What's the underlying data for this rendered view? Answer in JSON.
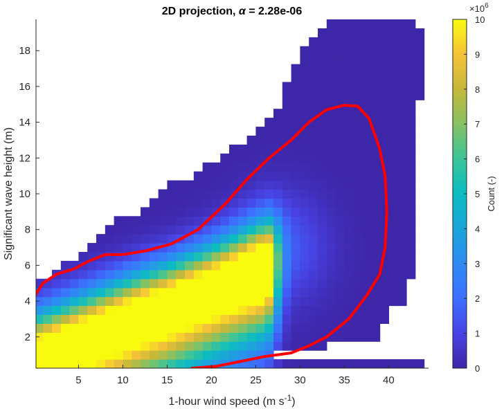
{
  "chart_data": {
    "type": "heatmap",
    "title": {
      "prefix": "2D projection, ",
      "symbol": "α",
      "suffix": " = 2.28e-06"
    },
    "xlabel": {
      "main": "1-hour wind speed (m s",
      "sup": "-1",
      "close": ")"
    },
    "ylabel": "Significant wave height (m)",
    "xlim": [
      0.2,
      44.5
    ],
    "ylim": [
      0.25,
      19.75
    ],
    "xticks": [
      5,
      10,
      15,
      20,
      25,
      30,
      35,
      40
    ],
    "yticks": [
      2,
      4,
      6,
      8,
      10,
      12,
      14,
      16,
      18
    ],
    "xticklabels": [
      "5",
      "10",
      "15",
      "20",
      "25",
      "30",
      "35",
      "40"
    ],
    "yticklabels": [
      "2",
      "4",
      "6",
      "8",
      "10",
      "12",
      "14",
      "16",
      "18"
    ],
    "bin_width_x": 1,
    "bin_width_y": 0.5,
    "colorbar": {
      "label": "Count (-)",
      "exponent_base": "×10",
      "exponent": "6",
      "range": [
        0,
        10
      ],
      "ticks": [
        "0",
        "1",
        "2",
        "3",
        "4",
        "5",
        "6",
        "7",
        "8",
        "9",
        "10"
      ],
      "colormap": "parula"
    },
    "occupied_extent_by_hs_row": [
      {
        "hs": [
          0.25,
          0.75
        ],
        "x": [
          0.2,
          44
        ]
      },
      {
        "hs": [
          0.75,
          1.25
        ],
        "x": [
          0.2,
          27
        ]
      },
      {
        "hs": [
          1.25,
          1.75
        ],
        "x": [
          0.2,
          33
        ]
      },
      {
        "hs": [
          1.75,
          2.25
        ],
        "x": [
          0.2,
          39
        ]
      },
      {
        "hs": [
          2.25,
          2.75
        ],
        "x": [
          0.2,
          39
        ]
      },
      {
        "hs": [
          2.75,
          3.25
        ],
        "x": [
          0.2,
          40
        ]
      },
      {
        "hs": [
          3.25,
          3.75
        ],
        "x": [
          0.2,
          40
        ]
      },
      {
        "hs": [
          3.75,
          4.25
        ],
        "x": [
          0.2,
          42
        ]
      },
      {
        "hs": [
          4.25,
          4.75
        ],
        "x": [
          0.2,
          42
        ]
      },
      {
        "hs": [
          4.75,
          5.25
        ],
        "x": [
          0.2,
          42
        ]
      },
      {
        "hs": [
          5.25,
          5.75
        ],
        "x": [
          2,
          43
        ]
      },
      {
        "hs": [
          5.75,
          6.25
        ],
        "x": [
          3,
          43
        ]
      },
      {
        "hs": [
          6.25,
          6.75
        ],
        "x": [
          5,
          43
        ]
      },
      {
        "hs": [
          6.75,
          7.25
        ],
        "x": [
          6,
          43
        ]
      },
      {
        "hs": [
          7.25,
          7.75
        ],
        "x": [
          7,
          43
        ]
      },
      {
        "hs": [
          7.75,
          8.25
        ],
        "x": [
          8,
          43
        ]
      },
      {
        "hs": [
          8.25,
          8.75
        ],
        "x": [
          9,
          43
        ]
      },
      {
        "hs": [
          8.75,
          9.25
        ],
        "x": [
          12,
          43
        ]
      },
      {
        "hs": [
          9.25,
          9.75
        ],
        "x": [
          13,
          43
        ]
      },
      {
        "hs": [
          9.75,
          10.25
        ],
        "x": [
          14,
          43
        ]
      },
      {
        "hs": [
          10.25,
          10.75
        ],
        "x": [
          15,
          43
        ]
      },
      {
        "hs": [
          10.75,
          11.25
        ],
        "x": [
          18,
          43
        ]
      },
      {
        "hs": [
          11.25,
          11.75
        ],
        "x": [
          19,
          43
        ]
      },
      {
        "hs": [
          11.75,
          12.25
        ],
        "x": [
          21,
          43
        ]
      },
      {
        "hs": [
          12.25,
          12.75
        ],
        "x": [
          22,
          43
        ]
      },
      {
        "hs": [
          12.75,
          13.25
        ],
        "x": [
          24,
          43
        ]
      },
      {
        "hs": [
          13.25,
          13.75
        ],
        "x": [
          25,
          43
        ]
      },
      {
        "hs": [
          13.75,
          14.25
        ],
        "x": [
          26,
          43
        ]
      },
      {
        "hs": [
          14.25,
          14.75
        ],
        "x": [
          27,
          43
        ]
      },
      {
        "hs": [
          14.75,
          15.25
        ],
        "x": [
          28,
          43
        ]
      },
      {
        "hs": [
          15.25,
          15.75
        ],
        "x": [
          28,
          44
        ]
      },
      {
        "hs": [
          15.75,
          16.25
        ],
        "x": [
          28,
          44
        ]
      },
      {
        "hs": [
          16.25,
          16.75
        ],
        "x": [
          29,
          44
        ]
      },
      {
        "hs": [
          16.75,
          17.25
        ],
        "x": [
          29,
          44
        ]
      },
      {
        "hs": [
          17.25,
          17.75
        ],
        "x": [
          30,
          44
        ]
      },
      {
        "hs": [
          17.75,
          18.25
        ],
        "x": [
          30,
          44
        ]
      },
      {
        "hs": [
          18.25,
          18.75
        ],
        "x": [
          31,
          44
        ]
      },
      {
        "hs": [
          18.75,
          19.25
        ],
        "x": [
          32,
          44
        ]
      },
      {
        "hs": [
          19.25,
          19.75
        ],
        "x": [
          33,
          43
        ]
      }
    ],
    "high_count_ridge": [
      {
        "u": 1,
        "hs": 1.0
      },
      {
        "u": 3,
        "hs": 1.4
      },
      {
        "u": 6,
        "hs": 2.0
      },
      {
        "u": 9,
        "hs": 2.6
      },
      {
        "u": 12,
        "hs": 3.2
      },
      {
        "u": 15,
        "hs": 3.7
      },
      {
        "u": 18,
        "hs": 4.3
      },
      {
        "u": 21,
        "hs": 4.9
      },
      {
        "u": 24,
        "hs": 5.5
      },
      {
        "u": 26,
        "hs": 5.9
      }
    ],
    "contour": {
      "name": "",
      "color": "#ff0000",
      "points": [
        {
          "u": 17.8,
          "hs": 0.25
        },
        {
          "u": 20.5,
          "hs": 0.35
        },
        {
          "u": 23.0,
          "hs": 0.6
        },
        {
          "u": 26.0,
          "hs": 0.9
        },
        {
          "u": 29.0,
          "hs": 1.1
        },
        {
          "u": 31.0,
          "hs": 1.5
        },
        {
          "u": 33.0,
          "hs": 2.0
        },
        {
          "u": 35.5,
          "hs": 3.0
        },
        {
          "u": 37.5,
          "hs": 4.3
        },
        {
          "u": 39.0,
          "hs": 5.5
        },
        {
          "u": 39.6,
          "hs": 7.0
        },
        {
          "u": 39.8,
          "hs": 9.0
        },
        {
          "u": 39.6,
          "hs": 11.0
        },
        {
          "u": 39.0,
          "hs": 12.5
        },
        {
          "u": 37.8,
          "hs": 14.2
        },
        {
          "u": 36.5,
          "hs": 14.9
        },
        {
          "u": 35.0,
          "hs": 14.95
        },
        {
          "u": 33.0,
          "hs": 14.7
        },
        {
          "u": 31.0,
          "hs": 14.0
        },
        {
          "u": 29.0,
          "hs": 13.0
        },
        {
          "u": 26.5,
          "hs": 12.0
        },
        {
          "u": 24.0,
          "hs": 10.8
        },
        {
          "u": 21.5,
          "hs": 9.4
        },
        {
          "u": 18.5,
          "hs": 8.0
        },
        {
          "u": 15.5,
          "hs": 7.2
        },
        {
          "u": 12.5,
          "hs": 6.8
        },
        {
          "u": 10.0,
          "hs": 6.6
        },
        {
          "u": 8.0,
          "hs": 6.6
        },
        {
          "u": 6.0,
          "hs": 6.2
        },
        {
          "u": 4.5,
          "hs": 5.8
        },
        {
          "u": 2.5,
          "hs": 5.5
        },
        {
          "u": 1.0,
          "hs": 5.0
        },
        {
          "u": 0.2,
          "hs": 4.4
        }
      ]
    }
  }
}
